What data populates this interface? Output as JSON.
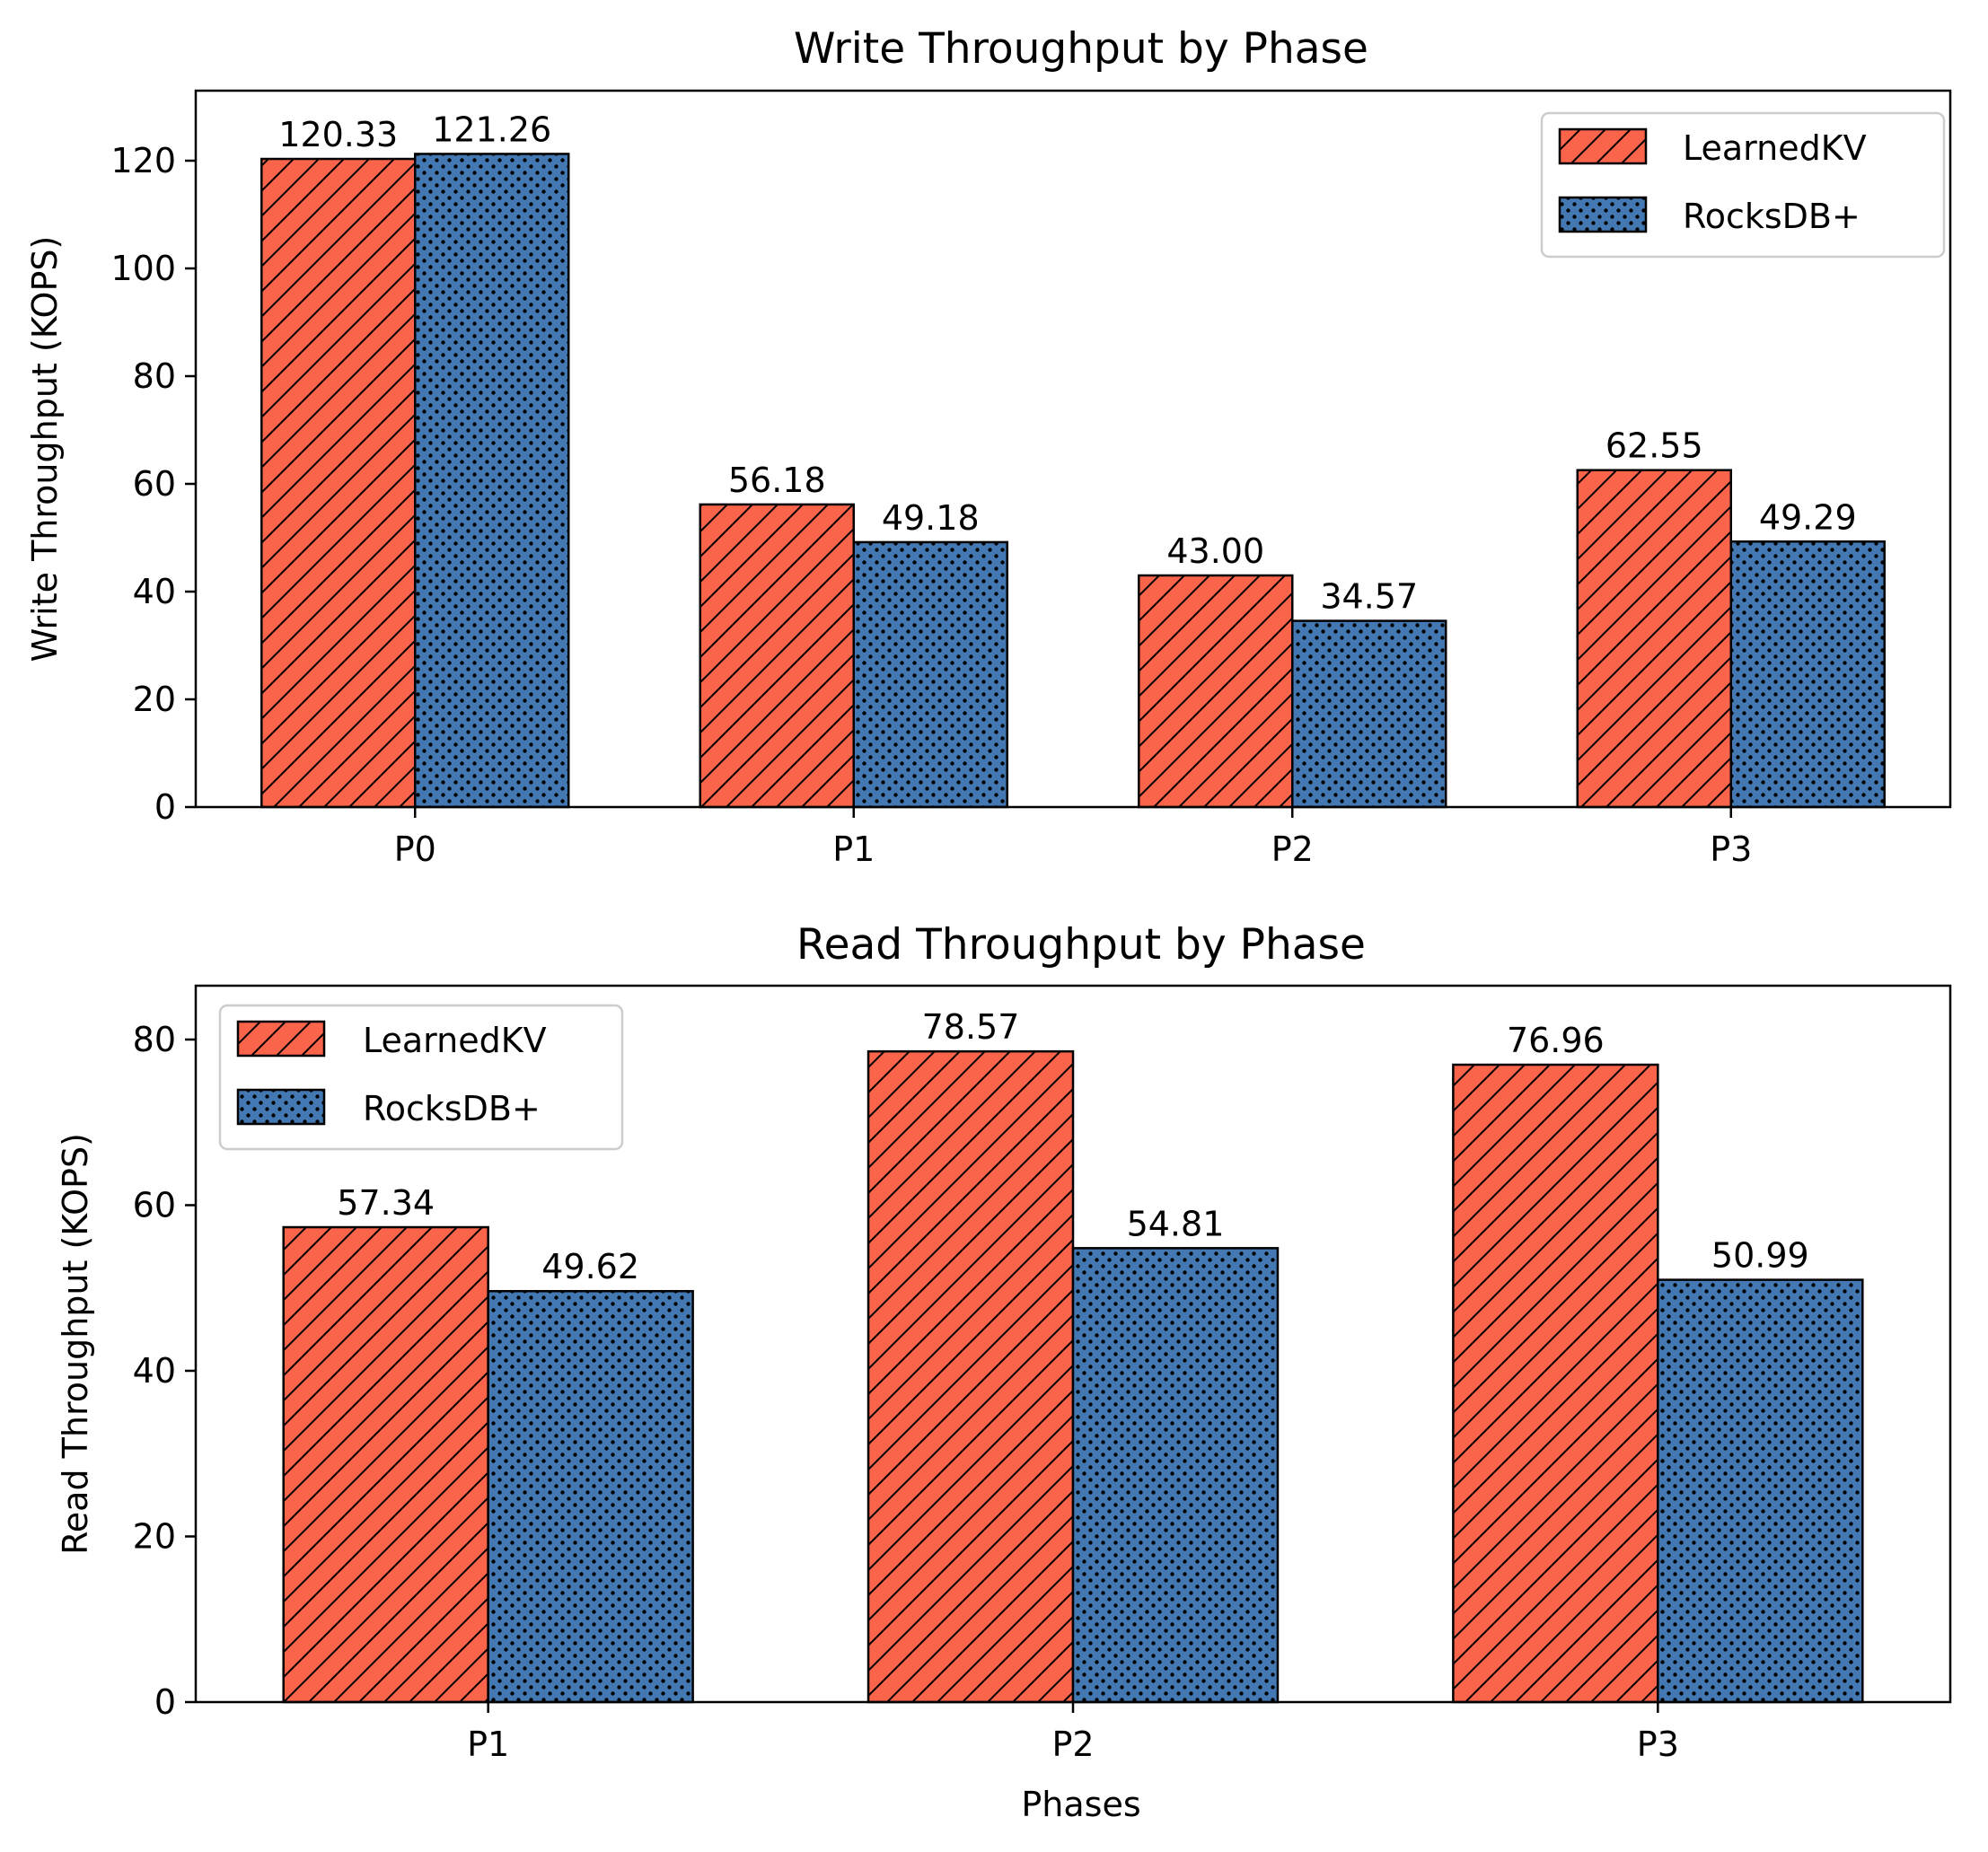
{
  "colors": {
    "learnedkv": "#f9644a",
    "rocksdb": "#4378b2",
    "edge": "#000000"
  },
  "chart_data": [
    {
      "type": "bar",
      "title": "Write Throughput by Phase",
      "xlabel": "",
      "ylabel": "Write Throughput (KOPS)",
      "categories": [
        "P0",
        "P1",
        "P2",
        "P3"
      ],
      "ylim": [
        0,
        133
      ],
      "yticks": [
        0,
        20,
        40,
        60,
        80,
        100,
        120
      ],
      "legend_position": "top-right",
      "series": [
        {
          "name": "LearnedKV",
          "values": [
            120.33,
            56.18,
            43.0,
            62.55
          ],
          "labels": [
            "120.33",
            "56.18",
            "43.00",
            "62.55"
          ],
          "hatch": "diagonal"
        },
        {
          "name": "RocksDB+",
          "values": [
            121.26,
            49.18,
            34.57,
            49.29
          ],
          "labels": [
            "121.26",
            "49.18",
            "34.57",
            "49.29"
          ],
          "hatch": "dots"
        }
      ]
    },
    {
      "type": "bar",
      "title": "Read Throughput by Phase",
      "xlabel": "Phases",
      "ylabel": "Read Throughput (KOPS)",
      "categories": [
        "P1",
        "P2",
        "P3"
      ],
      "ylim": [
        0,
        86.5
      ],
      "yticks": [
        0,
        20,
        40,
        60,
        80
      ],
      "legend_position": "top-left",
      "series": [
        {
          "name": "LearnedKV",
          "values": [
            57.34,
            78.57,
            76.96
          ],
          "labels": [
            "57.34",
            "78.57",
            "76.96"
          ],
          "hatch": "diagonal"
        },
        {
          "name": "RocksDB+",
          "values": [
            49.62,
            54.81,
            50.99
          ],
          "labels": [
            "49.62",
            "54.81",
            "50.99"
          ],
          "hatch": "dots"
        }
      ]
    }
  ]
}
